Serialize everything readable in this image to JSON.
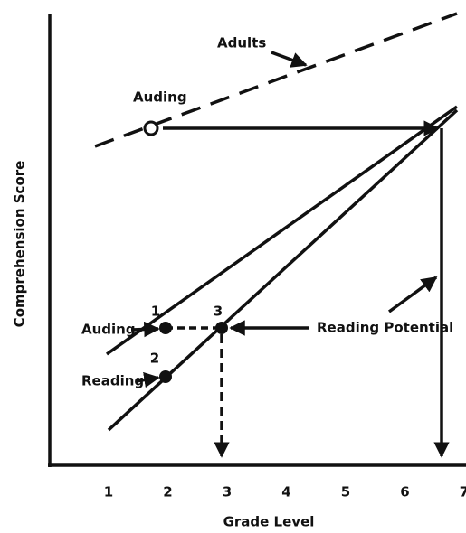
{
  "title_labels": {
    "adults": "Adults",
    "auding_top": "Auding",
    "auding": "Auding",
    "reading": "Reading",
    "reading_potential": "Reading Potential",
    "point_1": "1",
    "point_2": "2",
    "point_3": "3"
  },
  "x_axis": {
    "label": "Grade Level",
    "ticks": [
      "1",
      "2",
      "3",
      "4",
      "5",
      "6",
      "7"
    ]
  },
  "y_axis": {
    "label": "Comprehension Score"
  }
}
